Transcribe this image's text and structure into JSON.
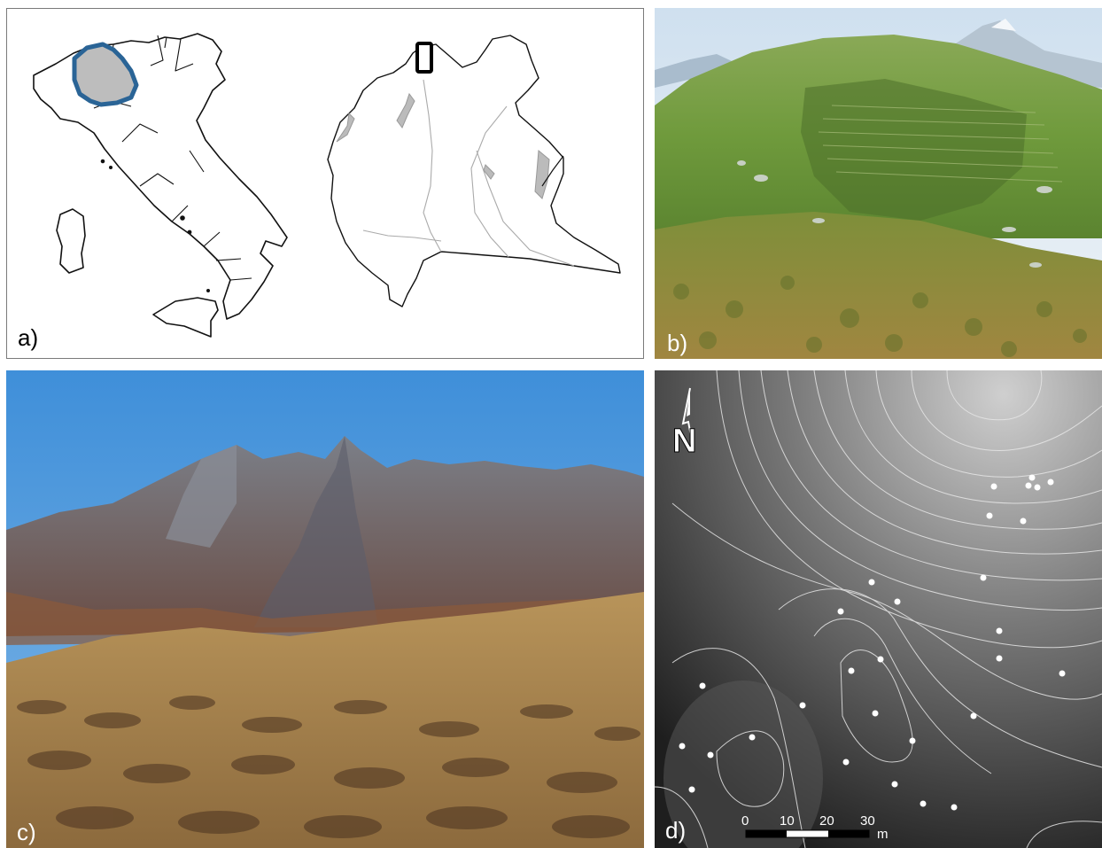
{
  "panels": {
    "a": {
      "label": "a)"
    },
    "b": {
      "label": "b)"
    },
    "c": {
      "label": "c)"
    },
    "d": {
      "label": "d)",
      "north_label": "N",
      "scale": {
        "ticks": [
          "0",
          "10",
          "20",
          "30"
        ],
        "unit": "m"
      }
    }
  },
  "colors": {
    "region_highlight": "#2a6496",
    "region_fill": "#bdbdbd",
    "sky": "#4a93d6",
    "grass": "#6f9a3c",
    "dem_dark": "#1e1e1e",
    "dem_light": "#cfcfcf"
  }
}
